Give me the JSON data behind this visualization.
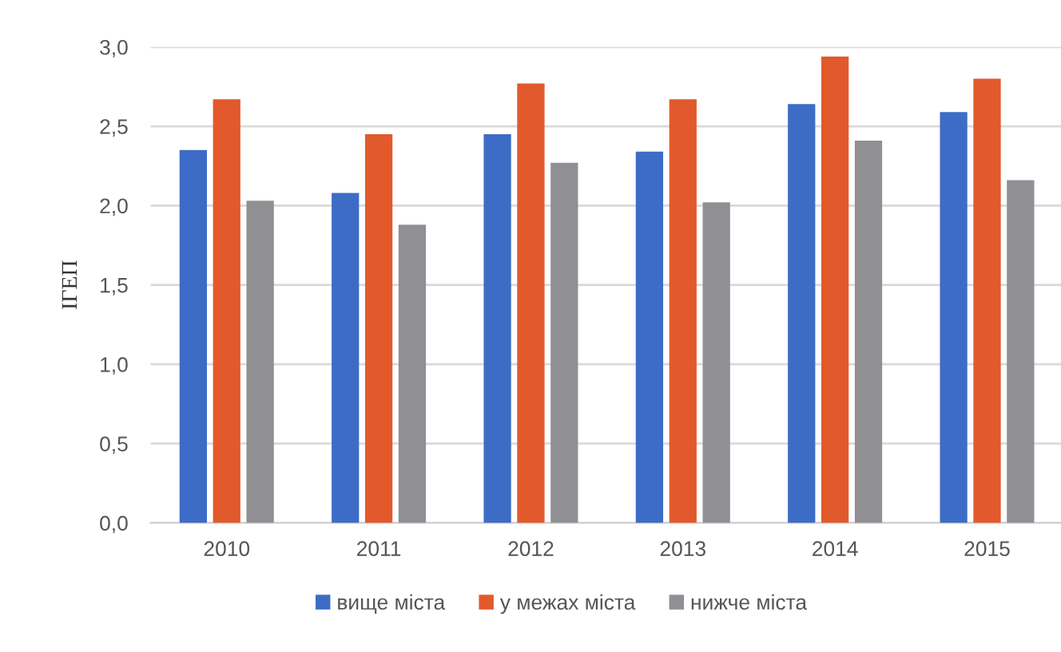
{
  "chart_data": {
    "type": "bar",
    "ylabel": "ІГЕП",
    "categories": [
      "2010",
      "2011",
      "2012",
      "2013",
      "2014",
      "2015"
    ],
    "series": [
      {
        "name": "вище міста",
        "color": "#3d6cc6",
        "values": [
          2.35,
          2.08,
          2.45,
          2.34,
          2.64,
          2.59
        ]
      },
      {
        "name": "у межах міста",
        "color": "#e2592c",
        "values": [
          2.67,
          2.45,
          2.77,
          2.67,
          2.94,
          2.8
        ]
      },
      {
        "name": "нижче міста",
        "color": "#8f8f94",
        "values": [
          2.03,
          1.88,
          2.27,
          2.02,
          2.41,
          2.16
        ]
      }
    ],
    "ylim": [
      0,
      3.0
    ],
    "yticks": [
      {
        "value": 0,
        "label": "0,0"
      },
      {
        "value": 0.5,
        "label": "0,5"
      },
      {
        "value": 1.0,
        "label": "1,0"
      },
      {
        "value": 1.5,
        "label": "1,5"
      },
      {
        "value": 2.0,
        "label": "2,0"
      },
      {
        "value": 2.5,
        "label": "2,5"
      },
      {
        "value": 3.0,
        "label": "3,0"
      }
    ],
    "grid": "y",
    "legend": "bottom"
  }
}
